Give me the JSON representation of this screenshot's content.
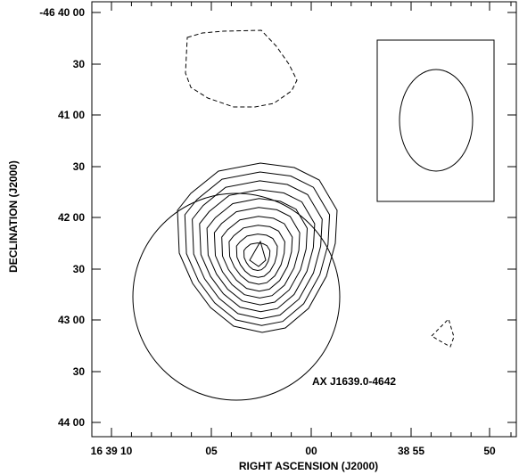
{
  "chart_data": {
    "type": "contour",
    "x_axis": {
      "label": "RIGHT ASCENSION (J2000)",
      "tick_labels": [
        "16 39 10",
        "05",
        "00",
        "38 55",
        "50"
      ]
    },
    "y_axis": {
      "label": "DECLINATION (J2000)",
      "tick_labels": [
        "-46 40 00",
        "30",
        "41 00",
        "30",
        "42 00",
        "30",
        "43 00",
        "30",
        "44 00"
      ]
    },
    "annotation": "AX J1639.0-4642",
    "colors": {
      "line": "#000000",
      "background": "#ffffff"
    },
    "inset": "beam ellipse (top-right box)",
    "features": [
      "nested positive contours peaking near RA 16 39 03, Dec -46 42 30",
      "dashed negative contour near RA 16 39 03, Dec -46 40 30",
      "small dashed negative contour near RA 16 38 51.5, Dec -46 43 20",
      "large circle marking X-ray source error region"
    ]
  }
}
